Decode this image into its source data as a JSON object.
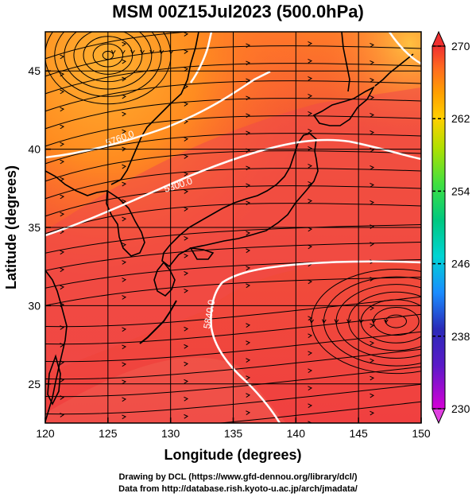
{
  "title": "MSM 00Z15Jul2023 (500.0hPa)",
  "x_axis": {
    "label": "Longitude (degrees)",
    "min": 120,
    "max": 150,
    "ticks": [
      120,
      125,
      130,
      135,
      140,
      145,
      150
    ]
  },
  "y_axis": {
    "label": "Latitude  (degrees)",
    "min": 22.5,
    "max": 47.5,
    "ticks": [
      25,
      30,
      35,
      40,
      45
    ]
  },
  "colorbar": {
    "min": 230,
    "max": 270,
    "tick_labels": [
      "270",
      "262",
      "254",
      "246",
      "238",
      "230"
    ],
    "tick_values": [
      270,
      262,
      254,
      246,
      238,
      230
    ],
    "colors": [
      "#d600d6",
      "#2a2ab8",
      "#1a8cff",
      "#00d4d4",
      "#00c880",
      "#40e040",
      "#b0e000",
      "#ffd000",
      "#ffa000",
      "#ff6a20",
      "#f03030"
    ]
  },
  "contours": [
    {
      "label": "5760.0"
    },
    {
      "label": "5800.0"
    },
    {
      "label": "5840.0"
    }
  ],
  "credits": {
    "line1": "Drawing by DCL (https://www.gfd-dennou.org/library/dcl/)",
    "line2": "Data from http://database.rish.kyoto-u.ac.jp/arch/jmadata/"
  }
}
